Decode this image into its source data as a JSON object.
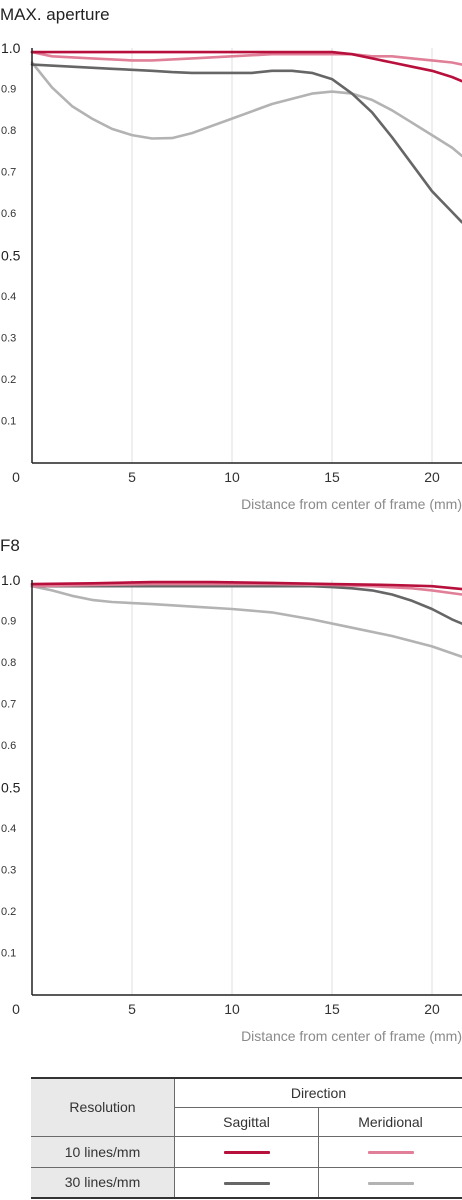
{
  "chart_data": [
    {
      "type": "line",
      "title": "MAX. aperture",
      "xlabel": "Distance from center of frame (mm)",
      "ylabel": "",
      "xlim": [
        0,
        21.5
      ],
      "ylim": [
        0,
        1.0
      ],
      "xticks": [
        "0",
        "5",
        "10",
        "15",
        "20"
      ],
      "yticks": [
        "0.1",
        "0.2",
        "0.3",
        "0.4",
        "0.5",
        "0.6",
        "0.7",
        "0.8",
        "0.9",
        "1.0"
      ],
      "grid": "vertical",
      "series": [
        {
          "key": "sag10",
          "x": [
            0,
            2,
            4,
            6,
            8,
            10,
            12,
            14,
            15,
            16,
            17,
            18,
            19,
            20,
            21,
            21.5
          ],
          "y": [
            0.99,
            0.99,
            0.99,
            0.99,
            0.99,
            0.99,
            0.99,
            0.99,
            0.99,
            0.985,
            0.975,
            0.965,
            0.955,
            0.945,
            0.93,
            0.92
          ]
        },
        {
          "key": "mer10",
          "x": [
            0,
            1,
            3,
            5,
            6,
            8,
            10,
            12,
            14,
            15,
            16,
            17,
            18,
            19,
            20,
            21,
            21.5
          ],
          "y": [
            0.99,
            0.98,
            0.975,
            0.97,
            0.97,
            0.975,
            0.98,
            0.985,
            0.985,
            0.985,
            0.985,
            0.98,
            0.98,
            0.975,
            0.97,
            0.965,
            0.96
          ]
        },
        {
          "key": "sag30",
          "x": [
            0,
            2,
            4,
            6,
            7,
            8,
            10,
            11,
            12,
            13,
            14,
            15,
            16,
            17,
            18,
            19,
            20,
            21,
            21.5
          ],
          "y": [
            0.96,
            0.955,
            0.95,
            0.945,
            0.942,
            0.94,
            0.94,
            0.94,
            0.945,
            0.945,
            0.94,
            0.925,
            0.89,
            0.845,
            0.785,
            0.72,
            0.655,
            0.605,
            0.58
          ]
        },
        {
          "key": "mer30",
          "x": [
            0,
            1,
            2,
            3,
            4,
            5,
            6,
            7,
            8,
            10,
            12,
            14,
            15,
            16,
            17,
            18,
            19,
            20,
            21,
            21.5
          ],
          "y": [
            0.965,
            0.905,
            0.86,
            0.83,
            0.805,
            0.79,
            0.782,
            0.783,
            0.795,
            0.83,
            0.865,
            0.89,
            0.895,
            0.89,
            0.875,
            0.85,
            0.82,
            0.79,
            0.76,
            0.74
          ]
        }
      ]
    },
    {
      "type": "line",
      "title": "F8",
      "xlabel": "Distance from center of frame (mm)",
      "ylabel": "",
      "xlim": [
        0,
        21.5
      ],
      "ylim": [
        0,
        1.0
      ],
      "xticks": [
        "0",
        "5",
        "10",
        "15",
        "20"
      ],
      "yticks": [
        "0.1",
        "0.2",
        "0.3",
        "0.4",
        "0.5",
        "0.6",
        "0.7",
        "0.8",
        "0.9",
        "1.0"
      ],
      "grid": "vertical",
      "series": [
        {
          "key": "sag10",
          "x": [
            0,
            3,
            6,
            9,
            12,
            15,
            18,
            20,
            21.5
          ],
          "y": [
            0.99,
            0.992,
            0.995,
            0.995,
            0.993,
            0.99,
            0.988,
            0.985,
            0.978
          ]
        },
        {
          "key": "mer10",
          "x": [
            0,
            3,
            6,
            9,
            12,
            15,
            17,
            19,
            20,
            21.5
          ],
          "y": [
            0.985,
            0.988,
            0.99,
            0.99,
            0.99,
            0.988,
            0.985,
            0.98,
            0.975,
            0.965
          ]
        },
        {
          "key": "sag30",
          "x": [
            0,
            3,
            6,
            9,
            12,
            14,
            15,
            16,
            17,
            18,
            19,
            20,
            21,
            21.5
          ],
          "y": [
            0.985,
            0.985,
            0.985,
            0.985,
            0.985,
            0.985,
            0.983,
            0.98,
            0.975,
            0.965,
            0.95,
            0.93,
            0.905,
            0.895
          ]
        },
        {
          "key": "mer30",
          "x": [
            0,
            1,
            2,
            3,
            4,
            6,
            8,
            10,
            12,
            14,
            16,
            18,
            20,
            21.5
          ],
          "y": [
            0.985,
            0.975,
            0.962,
            0.952,
            0.947,
            0.942,
            0.936,
            0.93,
            0.922,
            0.905,
            0.885,
            0.865,
            0.84,
            0.815
          ]
        }
      ]
    }
  ],
  "legend": {
    "resolution_header": "Resolution",
    "direction_header": "Direction",
    "sagittal_label": "Sagittal",
    "meridional_label": "Meridional",
    "rows": [
      {
        "label": "10 lines/mm",
        "sagittal_color": "#b8103c",
        "meridional_color": "#e07f97"
      },
      {
        "label": "30 lines/mm",
        "sagittal_color": "#666666",
        "meridional_color": "#b3b3b3"
      }
    ]
  },
  "colors": {
    "sag10": "#b8103c",
    "mer10": "#e07f97",
    "sag30": "#666666",
    "mer30": "#b3b3b3",
    "grid": "#e4e4e4",
    "axis": "#222222",
    "tick_label": "#333333",
    "xlabel": "#8a8a8a"
  }
}
